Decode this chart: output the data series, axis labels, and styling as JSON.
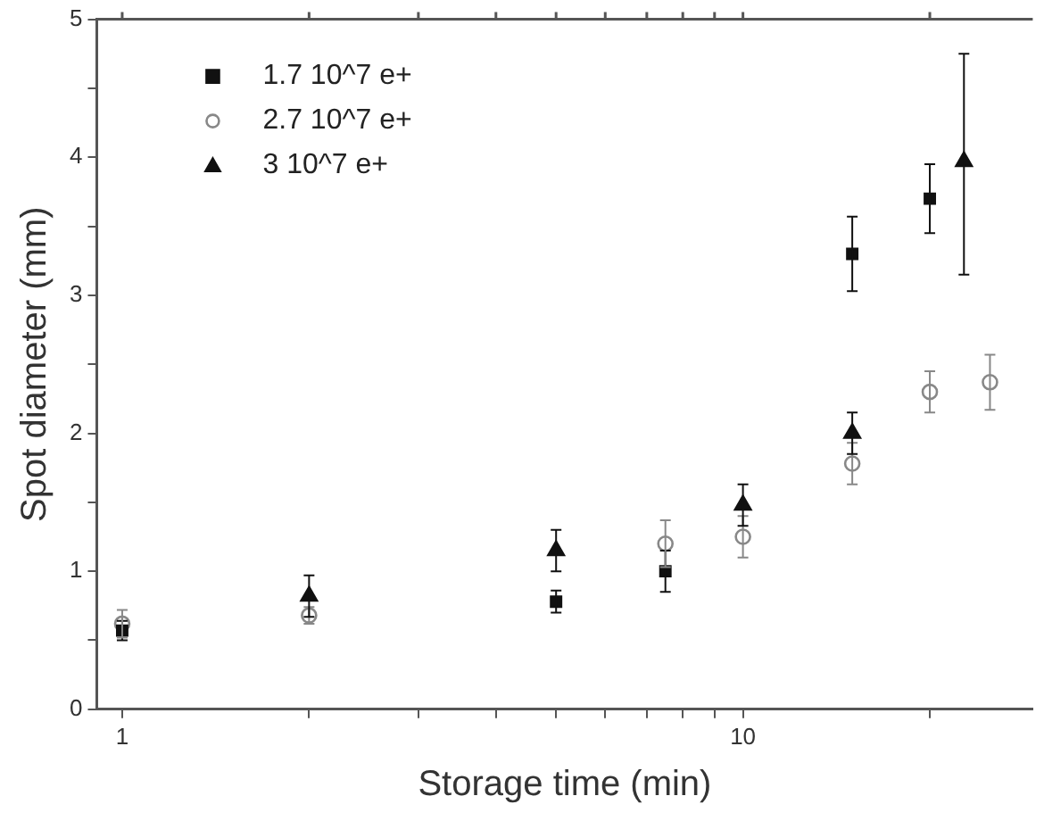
{
  "chart_data": {
    "type": "scatter",
    "xlabel": "Storage time (min)",
    "ylabel": "Spot diameter (mm)",
    "log": "x",
    "xlim": [
      0.91,
      29.3
    ],
    "ylim": [
      0,
      5
    ],
    "xticks": [
      1,
      {
        "value": 2,
        "label": null
      },
      {
        "value": 3,
        "label": null
      },
      {
        "value": 4,
        "label": null
      },
      {
        "value": 5,
        "label": null
      },
      {
        "value": 6,
        "label": null
      },
      {
        "value": 7,
        "label": null
      },
      {
        "value": 8,
        "label": null
      },
      {
        "value": 9,
        "label": null
      },
      10,
      {
        "value": 20,
        "label": null
      }
    ],
    "yticks": [
      0,
      {
        "value": 0.5,
        "label": null
      },
      1,
      {
        "value": 1.5,
        "label": null
      },
      2,
      {
        "value": 2.5,
        "label": null
      },
      3,
      {
        "value": 3.5,
        "label": null
      },
      4,
      {
        "value": 4.5,
        "label": null
      },
      5
    ],
    "grid": false,
    "legend": "top left",
    "series": [
      {
        "name": "1.7 10^7 e+",
        "color": "#111111",
        "marker": "square",
        "x": [
          1,
          5,
          7.5,
          15,
          20
        ],
        "values": [
          0.57,
          0.78,
          1.0,
          3.3,
          3.7
        ],
        "errors": [
          0.07,
          0.08,
          0.15,
          0.27,
          0.25
        ]
      },
      {
        "name": "2.7 10^7 e+",
        "color": "#888888",
        "marker": "circle",
        "x": [
          1,
          2,
          7.5,
          10,
          15,
          20,
          25
        ],
        "values": [
          0.62,
          0.68,
          1.2,
          1.25,
          1.78,
          2.3,
          2.37
        ],
        "errors": [
          0.1,
          0.06,
          0.17,
          0.15,
          0.15,
          0.15,
          0.2
        ]
      },
      {
        "name": "3 10^7 e+",
        "color": "#111111",
        "marker": "triangle",
        "x": [
          2,
          5,
          10,
          15,
          22.7
        ],
        "values": [
          0.82,
          1.15,
          1.48,
          2.0,
          3.97
        ],
        "errors": [
          0.15,
          0.15,
          0.15,
          0.15,
          [
            3.15,
            4.75
          ]
        ]
      }
    ]
  }
}
